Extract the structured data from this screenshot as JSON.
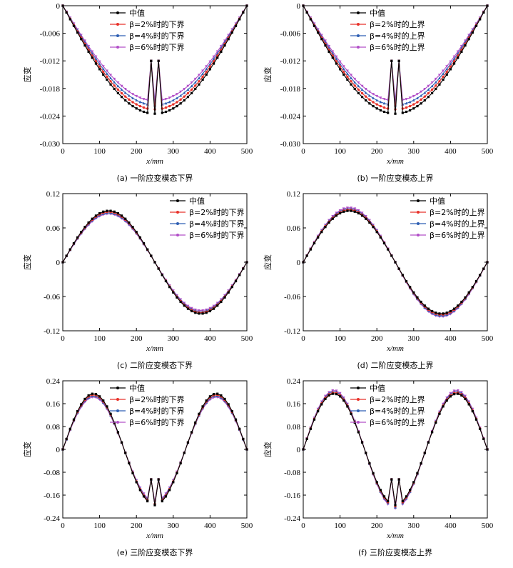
{
  "figure": {
    "x_axis_label": "x/mm",
    "y_axis_label": "应变",
    "legend_entries": [
      "中值",
      "β=2%时的下界",
      "β=4%时的下界",
      "β=6%时的下界",
      "β=2%时的上界",
      "β=4%时的上界",
      "β=6%时的上界"
    ],
    "series_colors": {
      "median": "#000000",
      "b2": "#e8322a",
      "b4": "#2f5fb3",
      "b6": "#b24fc8"
    }
  },
  "chart_data": [
    {
      "type": "line",
      "caption": "(a) 一阶应变模态下界",
      "mode": "m1",
      "direction": "lower",
      "xlim": [
        0,
        500
      ],
      "ylim": [
        -0.03,
        0
      ],
      "x_ticks": [
        0,
        100,
        200,
        300,
        400,
        500
      ],
      "y_ticks": [
        0,
        -0.006,
        -0.012,
        -0.018,
        -0.024,
        -0.03
      ],
      "y_tick_labels": [
        "0",
        "-0.006",
        "-0.012",
        "-0.018",
        "-0.024",
        "-0.030"
      ],
      "legend": [
        "中值",
        "β=2%时的下界",
        "β=4%时的下界",
        "β=6%时的下界"
      ],
      "series": [
        {
          "name": "中值",
          "color_key": "median",
          "offset": 0
        },
        {
          "name": "β=2%时的下界",
          "color_key": "b2",
          "offset": -0.04
        },
        {
          "name": "β=4%时的下界",
          "color_key": "b4",
          "offset": -0.08
        },
        {
          "name": "β=6%时的下界",
          "color_key": "b6",
          "offset": -0.12
        }
      ],
      "peak": -0.0235,
      "notch_value": -0.012,
      "notch_x": [
        240,
        260
      ]
    },
    {
      "type": "line",
      "caption": "(b) 一阶应变模态上界",
      "mode": "m1",
      "direction": "upper",
      "xlim": [
        0,
        500
      ],
      "ylim": [
        -0.03,
        0
      ],
      "x_ticks": [
        0,
        100,
        200,
        300,
        400,
        500
      ],
      "y_ticks": [
        0,
        -0.006,
        -0.012,
        -0.018,
        -0.024,
        -0.03
      ],
      "y_tick_labels": [
        "0",
        "-0.006",
        "-0.012",
        "-0.018",
        "-0.024",
        "-0.030"
      ],
      "legend": [
        "中值",
        "β=2%时的上界",
        "β=4%时的上界",
        "β=6%时的上界"
      ],
      "series": [
        {
          "name": "中值",
          "color_key": "median",
          "offset": 0
        },
        {
          "name": "β=2%时的上界",
          "color_key": "b2",
          "offset": -0.04
        },
        {
          "name": "β=4%时的上界",
          "color_key": "b4",
          "offset": -0.08
        },
        {
          "name": "β=6%时的上界",
          "color_key": "b6",
          "offset": -0.12
        }
      ],
      "peak": -0.0235,
      "notch_value": -0.012,
      "notch_x": [
        240,
        260
      ]
    },
    {
      "type": "line",
      "caption": "(c) 二阶应变模态下界",
      "mode": "m2",
      "direction": "lower",
      "xlim": [
        0,
        500
      ],
      "ylim": [
        -0.12,
        0.12
      ],
      "x_ticks": [
        0,
        100,
        200,
        300,
        400,
        500
      ],
      "y_ticks": [
        0.12,
        0.06,
        0,
        -0.06,
        -0.12
      ],
      "y_tick_labels": [
        "0.12",
        "0.06",
        "0",
        "-0.06",
        "-0.12"
      ],
      "legend": [
        "中值",
        "β=2%时的下界",
        "β=4%时的下界",
        "β=6%时的下界"
      ],
      "series": [
        {
          "name": "中值",
          "color_key": "median",
          "offset": 0
        },
        {
          "name": "β=2%时的下界",
          "color_key": "b2",
          "offset": -0.02
        },
        {
          "name": "β=4%时的下界",
          "color_key": "b4",
          "offset": -0.04
        },
        {
          "name": "β=6%时的下界",
          "color_key": "b6",
          "offset": -0.06
        }
      ],
      "peak": 0.09
    },
    {
      "type": "line",
      "caption": "(d) 二阶应变模态上界",
      "mode": "m2",
      "direction": "upper",
      "xlim": [
        0,
        500
      ],
      "ylim": [
        -0.12,
        0.12
      ],
      "x_ticks": [
        0,
        100,
        200,
        300,
        400,
        500
      ],
      "y_ticks": [
        0.12,
        0.06,
        0,
        -0.06,
        -0.12
      ],
      "y_tick_labels": [
        "0.12",
        "0.06",
        "0",
        "-0.06",
        "-0.12"
      ],
      "legend": [
        "中值",
        "β=2%时的上界",
        "β=4%时的上界",
        "β=6%时的上界"
      ],
      "series": [
        {
          "name": "中值",
          "color_key": "median",
          "offset": 0
        },
        {
          "name": "β=2%时的上界",
          "color_key": "b2",
          "offset": 0.02
        },
        {
          "name": "β=4%时的上界",
          "color_key": "b4",
          "offset": 0.04
        },
        {
          "name": "β=6%时的上界",
          "color_key": "b6",
          "offset": 0.06
        }
      ],
      "peak": 0.09
    },
    {
      "type": "line",
      "caption": "(e) 三阶应变模态下界",
      "mode": "m3",
      "direction": "lower",
      "xlim": [
        0,
        500
      ],
      "ylim": [
        -0.24,
        0.24
      ],
      "x_ticks": [
        0,
        100,
        200,
        300,
        400,
        500
      ],
      "y_ticks": [
        0.24,
        0.16,
        0.08,
        0,
        -0.08,
        -0.16,
        -0.24
      ],
      "y_tick_labels": [
        "0.24",
        "0.16",
        "0.08",
        "0",
        "-0.08",
        "-0.16",
        "-0.24"
      ],
      "legend": [
        "中值",
        "β=2%时的下界",
        "β=4%时的下界",
        "β=6%时的下界"
      ],
      "series": [
        {
          "name": "中值",
          "color_key": "median",
          "offset": 0
        },
        {
          "name": "β=2%时的下界",
          "color_key": "b2",
          "offset": -0.02
        },
        {
          "name": "β=4%时的下界",
          "color_key": "b4",
          "offset": -0.04
        },
        {
          "name": "β=6%时的下界",
          "color_key": "b6",
          "offset": -0.06
        }
      ],
      "peak": 0.195,
      "trough": -0.19,
      "notch_value": -0.105,
      "notch_x": [
        240,
        260
      ]
    },
    {
      "type": "line",
      "caption": "(f) 三阶应变模态上界",
      "mode": "m3",
      "direction": "upper",
      "xlim": [
        0,
        500
      ],
      "ylim": [
        -0.24,
        0.24
      ],
      "x_ticks": [
        0,
        100,
        200,
        300,
        400,
        500
      ],
      "y_ticks": [
        0.24,
        0.16,
        0.08,
        0,
        -0.08,
        -0.16,
        -0.24
      ],
      "y_tick_labels": [
        "0.24",
        "0.16",
        "0.08",
        "0",
        "-0.08",
        "-0.16",
        "-0.24"
      ],
      "legend": [
        "中值",
        "β=2%时的上界",
        "β=4%时的上界",
        "β=6%时的上界"
      ],
      "series": [
        {
          "name": "中值",
          "color_key": "median",
          "offset": 0
        },
        {
          "name": "β=2%时的上界",
          "color_key": "b2",
          "offset": 0.02
        },
        {
          "name": "β=4%时的上界",
          "color_key": "b4",
          "offset": 0.04
        },
        {
          "name": "β=6%时的上界",
          "color_key": "b6",
          "offset": 0.06
        }
      ],
      "peak": 0.195,
      "trough": -0.19,
      "notch_value": -0.105,
      "notch_x": [
        240,
        260
      ]
    }
  ]
}
